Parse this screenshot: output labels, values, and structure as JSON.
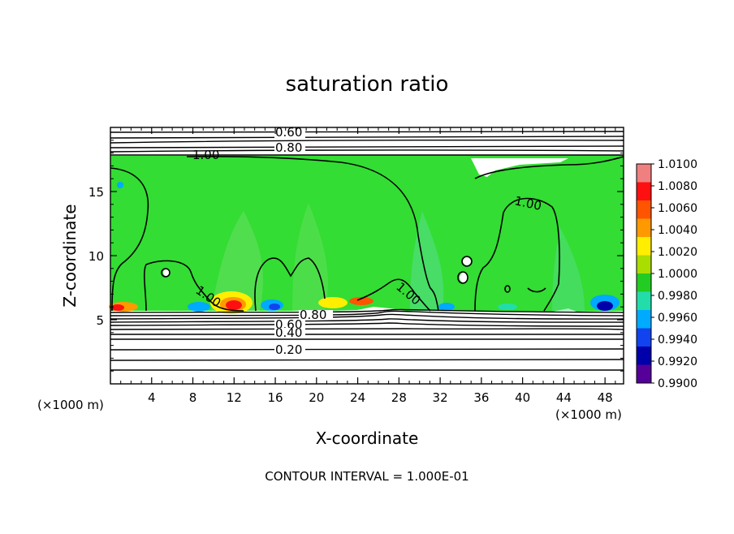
{
  "chart_data": {
    "type": "heatmap",
    "title": "saturation ratio",
    "xlabel": "X-coordinate",
    "ylabel": "Z-coordinate",
    "x_unit_left": "(×1000 m)",
    "x_unit_right": "(×1000 m)",
    "xlim": [
      0,
      49.8
    ],
    "ylim": [
      0,
      20
    ],
    "x_ticks": [
      4,
      8,
      12,
      16,
      20,
      24,
      28,
      32,
      36,
      40,
      44,
      48
    ],
    "y_ticks": [
      5,
      10,
      15
    ],
    "footer": "CONTOUR INTERVAL = 1.000E-01",
    "contour_labels": [
      "0.60",
      "0.80",
      "1.00",
      "1.00",
      "1.00",
      "1.00",
      "0.80",
      "0.60",
      "0.40",
      "0.20"
    ],
    "colorbar": {
      "labels": [
        "1.0100",
        "1.0080",
        "1.0060",
        "1.0040",
        "1.0020",
        "1.0000",
        "0.9980",
        "0.9960",
        "0.9940",
        "0.9920",
        "0.9900"
      ],
      "colors": [
        "#f08080",
        "#ff1010",
        "#ff5500",
        "#ff9900",
        "#ffee00",
        "#aadd00",
        "#22cc22",
        "#22ddaa",
        "#00aaff",
        "#1144ee",
        "#0000aa",
        "#550099"
      ]
    },
    "background_field_color": "#33dd33",
    "notes": ""
  }
}
